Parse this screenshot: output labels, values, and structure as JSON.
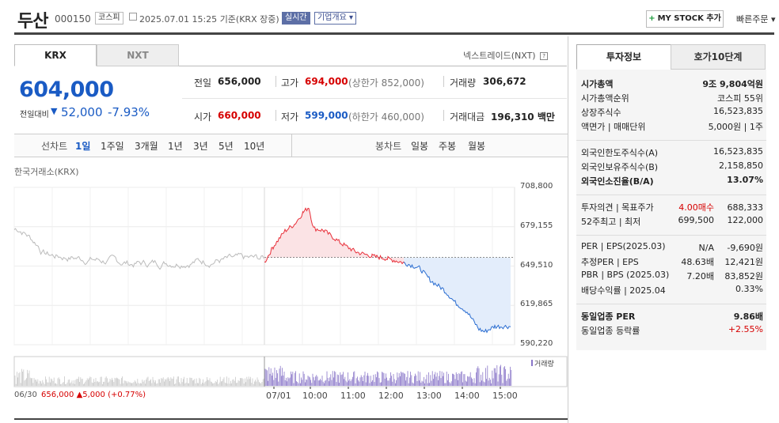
{
  "header": {
    "name": "두산",
    "code": "000150",
    "market": "코스피",
    "date": "2025.07.01 15:25",
    "basis": "기준(KRX 장중)",
    "realtime": "실시간",
    "company_info": "기업개요",
    "mystock": "MY STOCK 추가",
    "quick_order": "빠른주문"
  },
  "tabs": {
    "krx": "KRX",
    "nxt": "NXT",
    "nextrade": "넥스트레이드(NXT)"
  },
  "price": {
    "current": "604,000",
    "change_label": "전일대비",
    "change": "52,000",
    "change_pct": "-7.93%"
  },
  "summary": {
    "prev_label": "전일",
    "prev": "656,000",
    "high_label": "고가",
    "high": "694,000",
    "upper_limit": "(상한가 852,000)",
    "volume_label": "거래량",
    "volume": "306,672",
    "open_label": "시가",
    "open": "660,000",
    "low_label": "저가",
    "low": "599,000",
    "lower_limit": "(하한가 460,000)",
    "amount_label": "거래대금",
    "amount": "196,310",
    "amount_unit": "백만"
  },
  "periods": {
    "line_label": "선차트",
    "line": [
      "1일",
      "1주일",
      "3개월",
      "1년",
      "3년",
      "5년",
      "10년"
    ],
    "candle_label": "봉차트",
    "candle": [
      "일봉",
      "주봉",
      "월봉"
    ]
  },
  "chart_data": {
    "type": "line",
    "source_label": "한국거래소(KRX)",
    "y_ticks": [
      "708,800",
      "679,155",
      "649,510",
      "619,865",
      "590,220"
    ],
    "ylim": [
      590220,
      708800
    ],
    "prev_close": 656000,
    "volume_label": "거래량",
    "x_ticks": [
      "07/01",
      "10:00",
      "11:00",
      "12:00",
      "13:00",
      "14:00",
      "15:00"
    ],
    "prev_day": {
      "date": "06/30",
      "close": "656,000",
      "change": "5,000",
      "pct": "(+0.77%)"
    },
    "colors": {
      "prev": "#bbbbbb",
      "up": "#e8303a",
      "down": "#2a6dd1",
      "up_fill": "#fbe3e5",
      "down_fill": "#e3edfb",
      "volume": "#8a77c9"
    }
  },
  "side": {
    "tab_info": "투자정보",
    "tab_hoga": "호가10단계",
    "g1": [
      {
        "k": "시가총액",
        "v": "9조 9,804억원",
        "bold": true
      },
      {
        "k": "시가총액순위",
        "v": "코스피 55위"
      },
      {
        "k": "상장주식수",
        "v": "16,523,835"
      },
      {
        "k": "액면가 | 매매단위",
        "v": "5,000원 | 1주"
      }
    ],
    "g2": [
      {
        "k": "외국인한도주식수(A)",
        "v": "16,523,835"
      },
      {
        "k": "외국인보유주식수(B)",
        "v": "2,158,850"
      },
      {
        "k": "외국인소진율(B/A)",
        "v": "13.07%",
        "bold": true
      }
    ],
    "g3": [
      {
        "k": "투자의견 | 목표주가",
        "v1": "4.00매수",
        "v2": "688,333"
      },
      {
        "k": "52주최고 | 최저",
        "v1": "699,500",
        "v2": "122,000"
      }
    ],
    "g4": [
      {
        "k": "PER | EPS(2025.03)",
        "v1": "N/A",
        "v2": "-9,690원"
      },
      {
        "k": "추정PER | EPS",
        "v1": "48.63배",
        "v2": "12,421원"
      },
      {
        "k": "PBR | BPS (2025.03)",
        "v1": "7.20배",
        "v2": "83,852원"
      },
      {
        "k": "배당수익률 | 2025.04",
        "v1": "",
        "v2": "0.33%"
      }
    ],
    "g5": [
      {
        "k": "동일업종 PER",
        "v": "9.86배",
        "bold": true
      },
      {
        "k": "동일업종 등락률",
        "v": "+2.55%",
        "red": true
      }
    ]
  }
}
